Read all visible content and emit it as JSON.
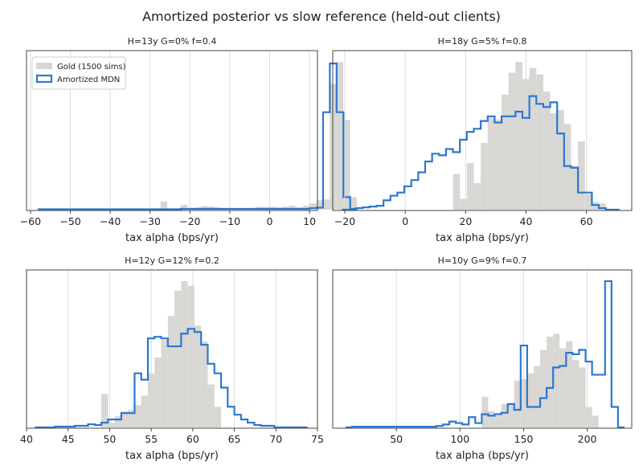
{
  "figure_title": "Amortized posterior vs slow reference (held-out clients)",
  "colors": {
    "gold": "#d9d7d4",
    "mdn": "#2b77d1",
    "grid": "#dddddd",
    "axis": "#444444"
  },
  "chart_data": [
    {
      "type": "histogram",
      "title": "H=13y  G=0%  f=0.4",
      "xlabel": "tax alpha (bps/yr)",
      "xlim": [
        -61,
        12
      ],
      "ticks": [
        -60,
        -50,
        -40,
        -30,
        -20,
        -10,
        0,
        10
      ],
      "grid": true,
      "legend": {
        "placement": "top-left",
        "entries": [
          "Gold (1500 sims)",
          "Amortized MDN"
        ]
      },
      "gold": {
        "name": "Gold (1500 sims)",
        "start": -58,
        "width": 1.7,
        "values": [
          0.3,
          0.3,
          0.3,
          0.3,
          0.3,
          0.3,
          0.3,
          0.3,
          0.3,
          0.3,
          0.3,
          0.3,
          0.3,
          0.3,
          0.5,
          0.5,
          0.3,
          0.3,
          5.2,
          0.8,
          0.5,
          3,
          1,
          1.5,
          2.3,
          2,
          1.5,
          1,
          0.8,
          0.8,
          0.8,
          0.8,
          1.8,
          1.8,
          1.8,
          1.5,
          2,
          2.5,
          1.5,
          2.5,
          4,
          6,
          6.5,
          80,
          94,
          57,
          8
        ]
      },
      "mdn": {
        "name": "Amortized MDN",
        "start": -58,
        "width": 1.7,
        "values": [
          0.3,
          0.3,
          0.3,
          0.3,
          0.3,
          0.3,
          0.3,
          0.3,
          0.3,
          0.3,
          0.3,
          0.3,
          0.3,
          0.3,
          0.3,
          0.3,
          0.3,
          0.3,
          0.3,
          0.3,
          0.3,
          0.5,
          0.5,
          0.5,
          0.5,
          0.5,
          0.5,
          0.5,
          0.5,
          0.5,
          0.5,
          0.5,
          0.5,
          0.5,
          0.5,
          0.5,
          0.5,
          0.5,
          0.5,
          0.5,
          1,
          1.3,
          62,
          93,
          62,
          8,
          0.5
        ]
      }
    },
    {
      "type": "histogram",
      "title": "H=18y  G=5%  f=0.8",
      "xlabel": "tax alpha (bps/yr)",
      "xlim": [
        -24,
        75
      ],
      "ticks": [
        -20,
        0,
        20,
        40,
        60
      ],
      "grid": true,
      "gold": {
        "name": "Gold (1500 sims)",
        "start": -21,
        "width": 2.3,
        "values": [
          0,
          0,
          0,
          0,
          0,
          0,
          0,
          0,
          0,
          0,
          0,
          0,
          0,
          0,
          0,
          0,
          23,
          7,
          30,
          17,
          43,
          59,
          58,
          74,
          88,
          95,
          84,
          91,
          87,
          76,
          62,
          64,
          55,
          28,
          44,
          10,
          5,
          4,
          0,
          0
        ]
      },
      "mdn": {
        "name": "Amortized MDN",
        "start": -21,
        "width": 2.3,
        "values": [
          0,
          0,
          1,
          1.5,
          2,
          2.5,
          6,
          9,
          11,
          15,
          19,
          24,
          31,
          36,
          35,
          39,
          37,
          45,
          50,
          52,
          57,
          60,
          56,
          60,
          60,
          63,
          59,
          73,
          68,
          66,
          69,
          49,
          28,
          27,
          11,
          11,
          3,
          1,
          0,
          0
        ]
      }
    },
    {
      "type": "histogram",
      "title": "H=12y  G=12%  f=0.2",
      "xlabel": "tax alpha (bps/yr)",
      "xlim": [
        40,
        75
      ],
      "ticks": [
        40,
        45,
        50,
        55,
        60,
        65,
        70,
        75
      ],
      "grid": true,
      "gold": {
        "name": "Gold (1500 sims)",
        "start": 41,
        "width": 0.8,
        "values": [
          0,
          0,
          0,
          0,
          0,
          0,
          0,
          0,
          0,
          0,
          21,
          3,
          7,
          10,
          11,
          14,
          20,
          34,
          44,
          55,
          70,
          86,
          92,
          89,
          64,
          54,
          27,
          13,
          0,
          0,
          0,
          0,
          0,
          0,
          0,
          0,
          0,
          0,
          0,
          0,
          0
        ]
      },
      "mdn": {
        "name": "Amortized MDN",
        "start": 41,
        "width": 0.8,
        "values": [
          0,
          0,
          0,
          0.5,
          0.5,
          0.5,
          1,
          1,
          2,
          1.5,
          3,
          5,
          5,
          9,
          9,
          34,
          30,
          56,
          57,
          56,
          51,
          51,
          59,
          62,
          60,
          52,
          40,
          34,
          25,
          13,
          8,
          5,
          3,
          1.5,
          1,
          1,
          0,
          0,
          0,
          0,
          0
        ]
      }
    },
    {
      "type": "histogram",
      "title": "H=10y  G=9%  f=0.7",
      "xlabel": "tax alpha (bps/yr)",
      "xlim": [
        0,
        235
      ],
      "ticks": [
        50,
        100,
        150,
        200
      ],
      "grid": true,
      "gold": {
        "name": "Gold (1500 sims)",
        "start": 10,
        "width": 5.1,
        "values": [
          0,
          0,
          0,
          0,
          0,
          0,
          0,
          0,
          0,
          0,
          0,
          0,
          0,
          0,
          0,
          0,
          0,
          0,
          0,
          0,
          0,
          21,
          11,
          8,
          16,
          16,
          32,
          33,
          37,
          42,
          53,
          62,
          64,
          54,
          59,
          46,
          41,
          14,
          8,
          0,
          0,
          0,
          0
        ]
      },
      "mdn": {
        "name": "Amortized MDN",
        "start": 10,
        "width": 5.1,
        "values": [
          0,
          0.5,
          0.5,
          0.5,
          0.5,
          0.5,
          0.5,
          0.5,
          0.5,
          0.5,
          0.5,
          0.5,
          0.5,
          0.5,
          1,
          2,
          4,
          3,
          2,
          7,
          3,
          9,
          8,
          9,
          10,
          16,
          12,
          56,
          14,
          14,
          20,
          27,
          41,
          42,
          51,
          50,
          53,
          45,
          36,
          36,
          100,
          14,
          0
        ]
      }
    }
  ]
}
